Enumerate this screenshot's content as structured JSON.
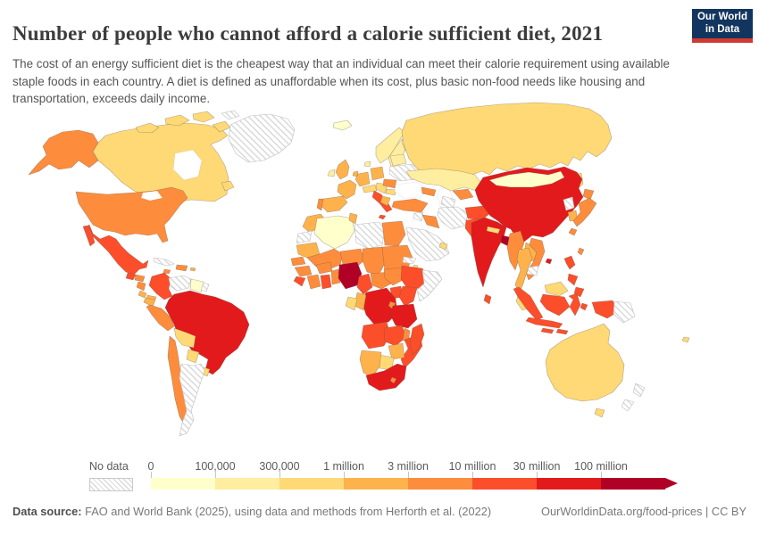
{
  "header": {
    "title": "Number of people who cannot afford a calorie sufficient diet, 2021",
    "subtitle": "The cost of an energy sufficient diet is the cheapest way that an individual can meet their calorie requirement using available staple foods in each country. A diet is defined as unaffordable when its cost, plus basic non-food needs like housing and transportation, exceeds daily income.",
    "logo": {
      "line1": "Our World",
      "line2": "in Data",
      "bg_color": "#12355f",
      "bar_color": "#cf3a33"
    }
  },
  "legend": {
    "no_data_label": "No data",
    "tick_labels": [
      "0",
      "100,000",
      "300,000",
      "1 million",
      "3 million",
      "10 million",
      "30 million",
      "100 million"
    ],
    "bin_colors": [
      "#FFFFCC",
      "#FFEDA0",
      "#FED976",
      "#FEB24C",
      "#FD8D3C",
      "#FC4E2A",
      "#E31A1C",
      "#B10026"
    ],
    "arrow_color": "#B10026",
    "no_data_pattern_line_color": "#d8d8d8"
  },
  "footer": {
    "source_label": "Data source:",
    "source_text": " FAO and World Bank (2025), using data and methods from Herforth et al. (2022)",
    "right_text": "OurWorldinData.org/food-prices | CC BY"
  },
  "chart_data": {
    "type": "heatmap",
    "subtype": "choropleth-world-map",
    "title": "Number of people who cannot afford a calorie sufficient diet, 2021",
    "legend_position": "bottom",
    "bins": [
      {
        "label": "0",
        "color": "#FFFFCC"
      },
      {
        "label": "100,000",
        "color": "#FFEDA0"
      },
      {
        "label": "300,000",
        "color": "#FED976"
      },
      {
        "label": "1 million",
        "color": "#FEB24C"
      },
      {
        "label": "3 million",
        "color": "#FD8D3C"
      },
      {
        "label": "10 million",
        "color": "#FC4E2A"
      },
      {
        "label": "30 million",
        "color": "#E31A1C"
      },
      {
        "label": "100 million",
        "color": "#B10026"
      }
    ],
    "countries": [
      {
        "id": "alaska",
        "name": "United States (Alaska)",
        "color": "#FD8D3C"
      },
      {
        "id": "usa",
        "name": "United States",
        "color": "#FD8D3C"
      },
      {
        "id": "canada",
        "name": "Canada",
        "color": "#FED976"
      },
      {
        "id": "arctic1",
        "name": "Canadian Arctic islands",
        "color": "#FED976"
      },
      {
        "id": "arctic2",
        "name": "Canadian Arctic islands",
        "color": "#FED976"
      },
      {
        "id": "arctic3",
        "name": "Canadian Arctic islands",
        "color": "#FED976"
      },
      {
        "id": "arctic4",
        "name": "Canadian Arctic islands",
        "color": "#FED976"
      },
      {
        "id": "arctic5",
        "name": "Arctic islands",
        "color": "no-data"
      },
      {
        "id": "newfoundland",
        "name": "Canada (Newfoundland)",
        "color": "#FED976"
      },
      {
        "id": "greenland",
        "name": "Greenland",
        "color": "no-data"
      },
      {
        "id": "mexico",
        "name": "Mexico",
        "color": "#FC4E2A"
      },
      {
        "id": "baja",
        "name": "Mexico (Baja)",
        "color": "#FC4E2A"
      },
      {
        "id": "guatemala",
        "name": "Guatemala",
        "color": "#FC4E2A"
      },
      {
        "id": "honduras",
        "name": "Honduras",
        "color": "#FD8D3C"
      },
      {
        "id": "nicaragua",
        "name": "Nicaragua",
        "color": "#FD8D3C"
      },
      {
        "id": "costa_rica",
        "name": "Costa Rica",
        "color": "#FEB24C"
      },
      {
        "id": "panama",
        "name": "Panama",
        "color": "#FEB24C"
      },
      {
        "id": "cuba",
        "name": "Cuba",
        "color": "no-data"
      },
      {
        "id": "jamaica",
        "name": "Jamaica",
        "color": "#FD8D3C"
      },
      {
        "id": "hispaniola",
        "name": "Haiti / Dominican Republic",
        "color": "#FD8D3C"
      },
      {
        "id": "puerto_rico",
        "name": "Puerto Rico",
        "color": "#FEB24C"
      },
      {
        "id": "colombia",
        "name": "Colombia",
        "color": "#FC4E2A"
      },
      {
        "id": "venezuela",
        "name": "Venezuela",
        "color": "no-data"
      },
      {
        "id": "guianas",
        "name": "Guyana / Suriname",
        "color": "#FFFFCC"
      },
      {
        "id": "fr_guiana",
        "name": "French Guiana",
        "color": "no-data"
      },
      {
        "id": "ecuador",
        "name": "Ecuador",
        "color": "#FEB24C"
      },
      {
        "id": "peru",
        "name": "Peru",
        "color": "#FD8D3C"
      },
      {
        "id": "brazil",
        "name": "Brazil",
        "color": "#E31A1C"
      },
      {
        "id": "bolivia",
        "name": "Bolivia",
        "color": "#FED976"
      },
      {
        "id": "paraguay",
        "name": "Paraguay",
        "color": "#FED976"
      },
      {
        "id": "uruguay",
        "name": "Uruguay",
        "color": "#FED976"
      },
      {
        "id": "chile",
        "name": "Chile",
        "color": "#FD8D3C"
      },
      {
        "id": "argentina",
        "name": "Argentina",
        "color": "no-data"
      },
      {
        "id": "iceland",
        "name": "Iceland",
        "color": "#FFFFCC"
      },
      {
        "id": "norway",
        "name": "Norway",
        "color": "#FFEDA0"
      },
      {
        "id": "sweden",
        "name": "Sweden",
        "color": "#FFEDA0"
      },
      {
        "id": "finland",
        "name": "Finland",
        "color": "#FFFFCC"
      },
      {
        "id": "denmark",
        "name": "Denmark",
        "color": "#FFEDA0"
      },
      {
        "id": "uk",
        "name": "United Kingdom",
        "color": "#FEB24C"
      },
      {
        "id": "ireland",
        "name": "Ireland",
        "color": "#FFEDA0"
      },
      {
        "id": "france",
        "name": "France",
        "color": "#FEB24C"
      },
      {
        "id": "spain",
        "name": "Spain",
        "color": "#FEB24C"
      },
      {
        "id": "portugal",
        "name": "Portugal",
        "color": "#FD8D3C"
      },
      {
        "id": "germany",
        "name": "Germany",
        "color": "#FEB24C"
      },
      {
        "id": "benelux",
        "name": "Belgium / Netherlands",
        "color": "#FEB24C"
      },
      {
        "id": "poland",
        "name": "Poland",
        "color": "#FEB24C"
      },
      {
        "id": "czech_austria",
        "name": "Czechia / Austria / Hungary",
        "color": "#FED976"
      },
      {
        "id": "italy",
        "name": "Italy",
        "color": "#FC4E2A"
      },
      {
        "id": "sicily",
        "name": "Italy (Sicily)",
        "color": "#FC4E2A"
      },
      {
        "id": "balkans",
        "name": "Balkans",
        "color": "#FED976"
      },
      {
        "id": "greece",
        "name": "Greece",
        "color": "#FEB24C"
      },
      {
        "id": "romania",
        "name": "Romania",
        "color": "#FD8D3C"
      },
      {
        "id": "bulgaria",
        "name": "Bulgaria",
        "color": "#FED976"
      },
      {
        "id": "ukraine",
        "name": "Ukraine",
        "color": "no-data"
      },
      {
        "id": "belarus_baltics",
        "name": "Belarus / Baltics",
        "color": "#FFEDA0"
      },
      {
        "id": "russia",
        "name": "Russia",
        "color": "#FED976"
      },
      {
        "id": "sakhalin",
        "name": "Russia (Sakhalin)",
        "color": "#FED976"
      },
      {
        "id": "caucasus",
        "name": "Caucasus",
        "color": "#FD8D3C"
      },
      {
        "id": "kazakhstan",
        "name": "Kazakhstan",
        "color": "#FFEDA0"
      },
      {
        "id": "uzbekistan",
        "name": "Uzbekistan",
        "color": "#FD8D3C"
      },
      {
        "id": "turkmenistan",
        "name": "Turkmenistan",
        "color": "no-data"
      },
      {
        "id": "kyrgyz_tajik",
        "name": "Kyrgyzstan / Tajikistan",
        "color": "#FD8D3C"
      },
      {
        "id": "turkey",
        "name": "Turkey",
        "color": "#FD8D3C"
      },
      {
        "id": "syria",
        "name": "Syria",
        "color": "no-data"
      },
      {
        "id": "iraq",
        "name": "Iraq",
        "color": "#FD8D3C"
      },
      {
        "id": "iran",
        "name": "Iran",
        "color": "no-data"
      },
      {
        "id": "saudi_peninsula",
        "name": "Saudi Arabia / Yemen / Oman",
        "color": "no-data"
      },
      {
        "id": "uae",
        "name": "United Arab Emirates",
        "color": "#FED976"
      },
      {
        "id": "afghanistan",
        "name": "Afghanistan",
        "color": "#FC4E2A"
      },
      {
        "id": "pakistan",
        "name": "Pakistan",
        "color": "#FC4E2A"
      },
      {
        "id": "india",
        "name": "India",
        "color": "#E31A1C"
      },
      {
        "id": "nepal",
        "name": "Nepal",
        "color": "#FED976"
      },
      {
        "id": "bangladesh",
        "name": "Bangladesh",
        "color": "#B10026"
      },
      {
        "id": "sri_lanka",
        "name": "Sri Lanka",
        "color": "#FC4E2A"
      },
      {
        "id": "china",
        "name": "China",
        "color": "#E31A1C"
      },
      {
        "id": "mongolia",
        "name": "Mongolia",
        "color": "#FFFFCC"
      },
      {
        "id": "taiwan",
        "name": "Taiwan",
        "color": "#FD8D3C"
      },
      {
        "id": "hainan",
        "name": "China (Hainan)",
        "color": "#E31A1C"
      },
      {
        "id": "north_korea",
        "name": "North Korea",
        "color": "no-data"
      },
      {
        "id": "south_korea",
        "name": "South Korea",
        "color": "#FEB24C"
      },
      {
        "id": "hokkaido",
        "name": "Japan (Hokkaido)",
        "color": "#FD8D3C"
      },
      {
        "id": "honshu",
        "name": "Japan",
        "color": "#FD8D3C"
      },
      {
        "id": "kyushu",
        "name": "Japan (Kyushu)",
        "color": "#FD8D3C"
      },
      {
        "id": "myanmar",
        "name": "Myanmar",
        "color": "#FD8D3C"
      },
      {
        "id": "thailand",
        "name": "Thailand",
        "color": "#FEB24C"
      },
      {
        "id": "laos",
        "name": "Laos",
        "color": "#FEB24C"
      },
      {
        "id": "vietnam",
        "name": "Vietnam",
        "color": "#FD8D3C"
      },
      {
        "id": "cambodia",
        "name": "Cambodia",
        "color": "no-data"
      },
      {
        "id": "malaysia_pen",
        "name": "Malaysia",
        "color": "#FED976"
      },
      {
        "id": "borneo_my",
        "name": "Malaysia (Borneo)",
        "color": "#FED976"
      },
      {
        "id": "sumatra",
        "name": "Indonesia (Sumatra)",
        "color": "#FC4E2A"
      },
      {
        "id": "java",
        "name": "Indonesia (Java)",
        "color": "#FC4E2A"
      },
      {
        "id": "borneo_id",
        "name": "Indonesia (Kalimantan)",
        "color": "#FC4E2A"
      },
      {
        "id": "sulawesi",
        "name": "Indonesia (Sulawesi)",
        "color": "#FC4E2A"
      },
      {
        "id": "lesser_sunda_a",
        "name": "Indonesia (Lesser Sunda)",
        "color": "#FC4E2A"
      },
      {
        "id": "lesser_sunda_b",
        "name": "Indonesia (Lesser Sunda)",
        "color": "#FC4E2A"
      },
      {
        "id": "maluku",
        "name": "Indonesia (Maluku)",
        "color": "#FC4E2A"
      },
      {
        "id": "west_papua",
        "name": "Indonesia (Papua)",
        "color": "#FC4E2A"
      },
      {
        "id": "png",
        "name": "Papua New Guinea",
        "color": "no-data"
      },
      {
        "id": "phil_a",
        "name": "Philippines (Luzon)",
        "color": "#FC4E2A"
      },
      {
        "id": "phil_b",
        "name": "Philippines (Visayas)",
        "color": "#FC4E2A"
      },
      {
        "id": "phil_c",
        "name": "Philippines (Mindanao)",
        "color": "#FC4E2A"
      },
      {
        "id": "australia",
        "name": "Australia",
        "color": "#FED976"
      },
      {
        "id": "tasmania",
        "name": "Australia (Tasmania)",
        "color": "#FED976"
      },
      {
        "id": "nz_north",
        "name": "New Zealand (North Island)",
        "color": "no-data"
      },
      {
        "id": "nz_south",
        "name": "New Zealand (South Island)",
        "color": "no-data"
      },
      {
        "id": "fiji",
        "name": "Fiji",
        "color": "#FED976"
      },
      {
        "id": "morocco",
        "name": "Morocco",
        "color": "#FEB24C"
      },
      {
        "id": "western_sahara",
        "name": "Western Sahara",
        "color": "no-data"
      },
      {
        "id": "algeria",
        "name": "Algeria",
        "color": "#FFFFCC"
      },
      {
        "id": "tunisia",
        "name": "Tunisia",
        "color": "#FEB24C"
      },
      {
        "id": "libya",
        "name": "Libya",
        "color": "no-data"
      },
      {
        "id": "egypt",
        "name": "Egypt",
        "color": "#FD8D3C"
      },
      {
        "id": "mauritania",
        "name": "Mauritania",
        "color": "#FEB24C"
      },
      {
        "id": "mali",
        "name": "Mali",
        "color": "#FD8D3C"
      },
      {
        "id": "niger",
        "name": "Niger",
        "color": "#FD8D3C"
      },
      {
        "id": "chad",
        "name": "Chad",
        "color": "#FD8D3C"
      },
      {
        "id": "sudan",
        "name": "Sudan",
        "color": "#FD8D3C"
      },
      {
        "id": "eritrea",
        "name": "Eritrea",
        "color": "no-data"
      },
      {
        "id": "djibouti",
        "name": "Djibouti",
        "color": "#FED976"
      },
      {
        "id": "senegal",
        "name": "Senegal",
        "color": "#FD8D3C"
      },
      {
        "id": "guinea",
        "name": "Guinea",
        "color": "#FD8D3C"
      },
      {
        "id": "sierra_liberia",
        "name": "Sierra Leone / Liberia",
        "color": "#FC4E2A"
      },
      {
        "id": "ivory_coast",
        "name": "Côte d'Ivoire",
        "color": "#FD8D3C"
      },
      {
        "id": "ghana",
        "name": "Ghana",
        "color": "#FC4E2A"
      },
      {
        "id": "burkina",
        "name": "Burkina Faso",
        "color": "#FD8D3C"
      },
      {
        "id": "togo_benin",
        "name": "Togo / Benin",
        "color": "#FD8D3C"
      },
      {
        "id": "nigeria",
        "name": "Nigeria",
        "color": "#B10026"
      },
      {
        "id": "cameroon",
        "name": "Cameroon",
        "color": "#FC4E2A"
      },
      {
        "id": "car",
        "name": "Central African Republic",
        "color": "#FD8D3C"
      },
      {
        "id": "south_sudan",
        "name": "South Sudan",
        "color": "#FD8D3C"
      },
      {
        "id": "ethiopia",
        "name": "Ethiopia",
        "color": "#FC4E2A"
      },
      {
        "id": "somalia",
        "name": "Somalia",
        "color": "no-data"
      },
      {
        "id": "uganda",
        "name": "Uganda",
        "color": "#FC4E2A"
      },
      {
        "id": "kenya",
        "name": "Kenya",
        "color": "#FC4E2A"
      },
      {
        "id": "drc",
        "name": "Democratic Republic of Congo",
        "color": "#E31A1C"
      },
      {
        "id": "congo_rep",
        "name": "Congo",
        "color": "#FEB24C"
      },
      {
        "id": "gabon",
        "name": "Gabon",
        "color": "#FED976"
      },
      {
        "id": "rwanda_burundi",
        "name": "Rwanda / Burundi",
        "color": "#FD8D3C"
      },
      {
        "id": "tanzania",
        "name": "Tanzania",
        "color": "#E31A1C"
      },
      {
        "id": "angola",
        "name": "Angola",
        "color": "#FC4E2A"
      },
      {
        "id": "zambia",
        "name": "Zambia",
        "color": "#FC4E2A"
      },
      {
        "id": "malawi",
        "name": "Malawi",
        "color": "#FD8D3C"
      },
      {
        "id": "mozambique",
        "name": "Mozambique",
        "color": "#FC4E2A"
      },
      {
        "id": "zimbabwe",
        "name": "Zimbabwe",
        "color": "#FEB24C"
      },
      {
        "id": "botswana",
        "name": "Botswana",
        "color": "#FED976"
      },
      {
        "id": "namibia",
        "name": "Namibia",
        "color": "#FEB24C"
      },
      {
        "id": "south_africa",
        "name": "South Africa",
        "color": "#E31A1C"
      },
      {
        "id": "lesotho",
        "name": "Lesotho",
        "color": "#FD8D3C"
      },
      {
        "id": "madagascar",
        "name": "Madagascar",
        "color": "#FC4E2A"
      }
    ]
  }
}
